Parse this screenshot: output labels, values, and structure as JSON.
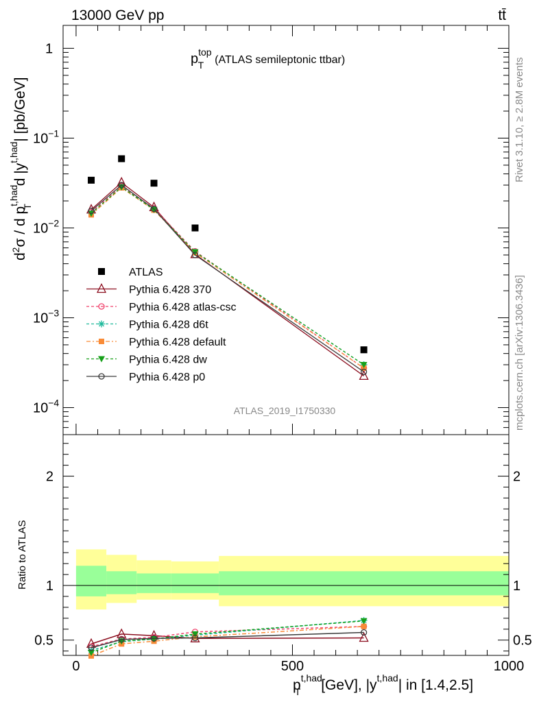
{
  "header": {
    "energy_label": "13000 GeV pp",
    "process_symbol": "tt̄"
  },
  "side_labels": {
    "rivet": "Rivet 3.1.10, ≥ 2.8M events",
    "mcplots": "mcplots.cern.ch [arXiv:1306.3436]"
  },
  "plot_title": {
    "main": "p",
    "sup": "top",
    "sub": "T",
    "suffix": "(ATLAS semileptonic ttbar)"
  },
  "analysis_id": "ATLAS_2019_I1750330",
  "upper_ylabel": {
    "prefix": "d",
    "sup1": "2",
    "mid1": "σ  /  d p",
    "sup2": "t,had",
    "sub2": "T",
    "mid2": " d |y",
    "sup3": "t,had",
    "suffix": "| [pb/GeV]"
  },
  "ratio_ylabel": "Ratio to ATLAS",
  "xlabel": {
    "p": "p",
    "sup1": "t,had",
    "sub1": "T",
    "mid": " [GeV], |y",
    "sup2": "t,had",
    "suffix": "| in [1.4,2.5]"
  },
  "upper_ticks": [
    {
      "value": 1,
      "base": "1",
      "exp": ""
    },
    {
      "value": 0.1,
      "base": "10",
      "exp": "−1"
    },
    {
      "value": 0.01,
      "base": "10",
      "exp": "−2"
    },
    {
      "value": 0.001,
      "base": "10",
      "exp": "−3"
    },
    {
      "value": 0.0001,
      "base": "10",
      "exp": "−4"
    }
  ],
  "ratio_ticks": [
    {
      "value": 0.5,
      "label": "0.5"
    },
    {
      "value": 1,
      "label": "1"
    },
    {
      "value": 2,
      "label": "2"
    }
  ],
  "x_ticks": [
    {
      "value": 0,
      "label": "0"
    },
    {
      "value": 500,
      "label": "500"
    },
    {
      "value": 1000,
      "label": "1000"
    }
  ],
  "chart_data": {
    "type": "line",
    "xlim": [
      -30,
      1000
    ],
    "ylim_upper": [
      5e-05,
      1.8
    ],
    "ylim_ratio": [
      0.36,
      2.38
    ],
    "y_scale_upper": "log",
    "bins": [
      [
        0,
        70
      ],
      [
        70,
        140
      ],
      [
        140,
        220
      ],
      [
        220,
        330
      ],
      [
        330,
        1000
      ]
    ],
    "x": [
      35,
      105,
      180,
      275,
      665
    ],
    "data": {
      "name": "ATLAS",
      "values": [
        0.034,
        0.059,
        0.0315,
        0.01,
        0.00044
      ]
    },
    "series": [
      {
        "name": "Pythia 6.428 370",
        "color": "#8b0d1e",
        "dash": "",
        "marker": "tri-open",
        "values": [
          0.016,
          0.032,
          0.017,
          0.0051,
          0.000225
        ],
        "ratio": [
          0.465,
          0.555,
          0.54,
          0.515,
          0.52
        ]
      },
      {
        "name": "Pythia 6.428 atlas-csc",
        "color": "#f0406b",
        "dash": "4,3",
        "marker": "circle-open",
        "values": [
          0.015,
          0.029,
          0.0165,
          0.0055,
          0.000275
        ],
        "ratio": [
          0.44,
          0.51,
          0.525,
          0.575,
          0.625
        ]
      },
      {
        "name": "Pythia 6.428 d6t",
        "color": "#1ab89a",
        "dash": "4,3",
        "marker": "star",
        "values": [
          0.0145,
          0.0285,
          0.016,
          0.0054,
          0.0003
        ],
        "ratio": [
          0.405,
          0.485,
          0.51,
          0.545,
          0.68
        ]
      },
      {
        "name": "Pythia 6.428 default",
        "color": "#f98b37",
        "dash": "6,3,2,3",
        "marker": "square",
        "values": [
          0.014,
          0.028,
          0.0158,
          0.0053,
          0.000275
        ],
        "ratio": [
          0.355,
          0.465,
          0.49,
          0.53,
          0.625
        ]
      },
      {
        "name": "Pythia 6.428 dw",
        "color": "#17a01a",
        "dash": "4,3",
        "marker": "tri-down",
        "values": [
          0.0145,
          0.0285,
          0.016,
          0.0054,
          0.0003
        ],
        "ratio": [
          0.385,
          0.49,
          0.51,
          0.555,
          0.675
        ]
      },
      {
        "name": "Pythia 6.428 p0",
        "color": "#3b3b3b",
        "dash": "",
        "marker": "circle-open",
        "values": [
          0.0155,
          0.03,
          0.0163,
          0.005,
          0.00025
        ],
        "ratio": [
          0.43,
          0.505,
          0.515,
          0.52,
          0.57
        ]
      }
    ],
    "uncertainty_bands": {
      "inner_green": [
        [
          0.9,
          1.18
        ],
        [
          0.92,
          1.13
        ],
        [
          0.93,
          1.11
        ],
        [
          0.93,
          1.11
        ],
        [
          0.91,
          1.13
        ]
      ],
      "outer_yellow": [
        [
          0.78,
          1.33
        ],
        [
          0.84,
          1.28
        ],
        [
          0.87,
          1.23
        ],
        [
          0.87,
          1.22
        ],
        [
          0.81,
          1.27
        ]
      ]
    },
    "legend_position": "middle-left"
  },
  "colors": {
    "yellow_band": "#ffff99",
    "green_band": "#99ff99",
    "data_marker": "#000000",
    "grey_text": "#888888"
  }
}
